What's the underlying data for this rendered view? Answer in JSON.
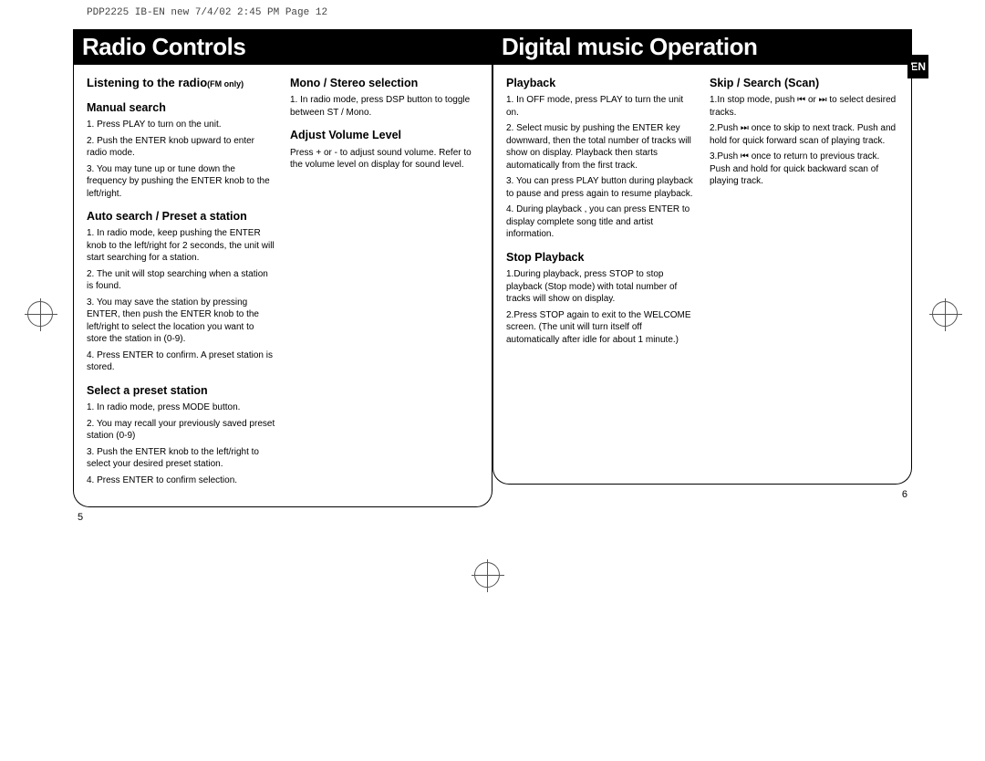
{
  "meta": {
    "header": "PDP2225 IB-EN new  7/4/02  2:45 PM  Page 12"
  },
  "left_page": {
    "title": "Radio Controls",
    "page_number": "5",
    "col1": {
      "heading": "Listening to the radio",
      "heading_tag": "(FM only)",
      "sub1": "Manual search",
      "p1": "1. Press PLAY to turn on the unit.",
      "p2": "2. Push the ENTER knob upward to enter radio mode.",
      "p3": "3. You may tune up or tune down the frequency by pushing the ENTER knob to the left/right.",
      "sub2": "Auto search / Preset a station",
      "p4": "1. In radio mode, keep pushing the ENTER knob to the left/right for 2 seconds, the unit will start searching for a station.",
      "p5": "2. The unit will stop searching when a station is found.",
      "p6": "3. You may save the station by pressing ENTER, then push the ENTER knob to the left/right to select the location you want to store the station in (0-9).",
      "p7": "4. Press ENTER to confirm. A preset station is stored.",
      "sub3": "Select a preset station",
      "p8": "1. In radio mode, press MODE button.",
      "p9": "2. You may recall your previously saved preset station (0-9)",
      "p10": "3. Push the ENTER knob to the left/right to select your desired preset station.",
      "p11": "4. Press ENTER to confirm selection."
    },
    "col2": {
      "sub1": "Mono / Stereo selection",
      "p1": "1. In radio mode, press DSP button to toggle between ST / Mono.",
      "sub2": "Adjust Volume Level",
      "p2": "Press + or - to adjust sound volume. Refer to the volume level on display for sound level."
    }
  },
  "right_page": {
    "title": "Digital music Operation",
    "page_number": "6",
    "lang_tab": "EN",
    "col1": {
      "sub1": "Playback",
      "p1": "1. In OFF mode, press PLAY to turn the unit on.",
      "p2": "2. Select music by pushing the ENTER key downward, then the total number of tracks will show on display. Playback then starts automatically from the first track.",
      "p3": "3. You can press PLAY button during playback to pause and press again to resume playback.",
      "p4": "4. During playback , you can press ENTER to display complete song title and artist information.",
      "sub2": "Stop Playback",
      "p5": "1.During playback, press STOP to stop playback (Stop mode) with total number of tracks will show on display.",
      "p6": "2.Press STOP again to exit to the WELCOME screen. (The unit will turn itself off automatically after idle for about 1 minute.)"
    },
    "col2": {
      "sub1": "Skip / Search (Scan)",
      "p1": "1.In stop mode, push  ⏮  or  ⏭  to select desired tracks.",
      "p2": "2.Push  ⏭  once to skip to next track. Push and hold for quick forward scan of playing track.",
      "p3": "3.Push  ⏮  once to return to previous track. Push and hold for quick backward scan of playing track."
    }
  }
}
